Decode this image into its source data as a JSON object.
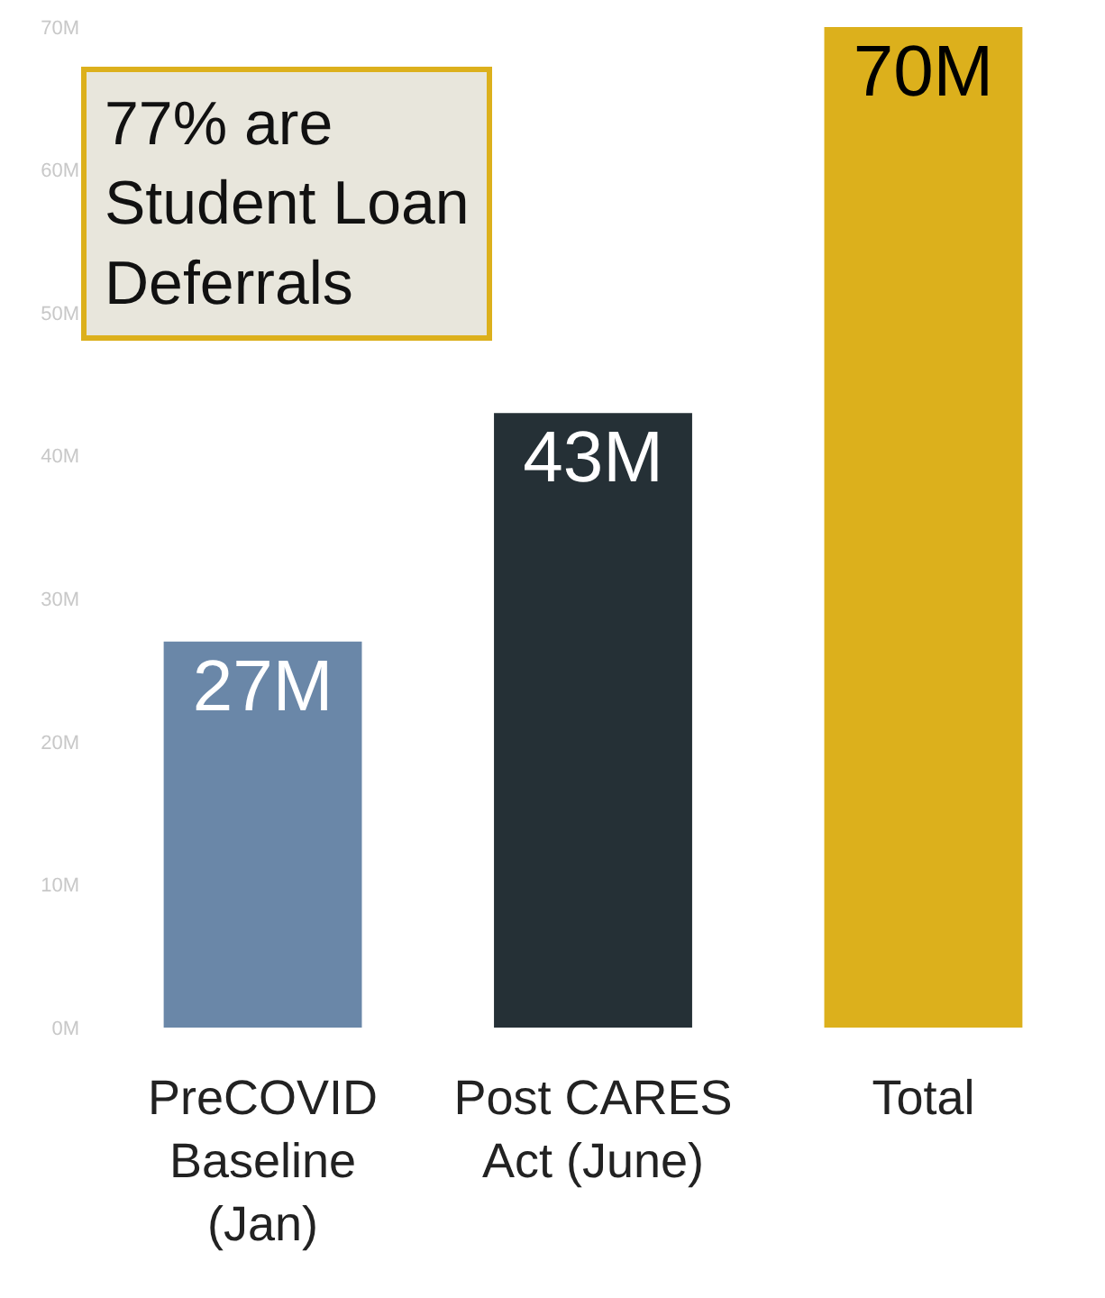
{
  "chart_data": {
    "type": "bar",
    "categories": [
      "PreCOVID Baseline (Jan)",
      "Post CARES Act (June)",
      "Total"
    ],
    "values": [
      27,
      43,
      70
    ],
    "colors": [
      "#6a87a8",
      "#253036",
      "#dcb01c"
    ],
    "value_labels": [
      "27M",
      "43M",
      "70M"
    ],
    "ylim": [
      0,
      70
    ],
    "yticks": [
      {
        "value": 0,
        "label": "0M"
      },
      {
        "value": 10,
        "label": "10M"
      },
      {
        "value": 20,
        "label": "20M"
      },
      {
        "value": 30,
        "label": "30M"
      },
      {
        "value": 40,
        "label": "40M"
      },
      {
        "value": 50,
        "label": "50M"
      },
      {
        "value": 60,
        "label": "60M"
      },
      {
        "value": 70,
        "label": "70M"
      }
    ],
    "annotations": [
      "77% are Student Loan Deferrals"
    ]
  }
}
